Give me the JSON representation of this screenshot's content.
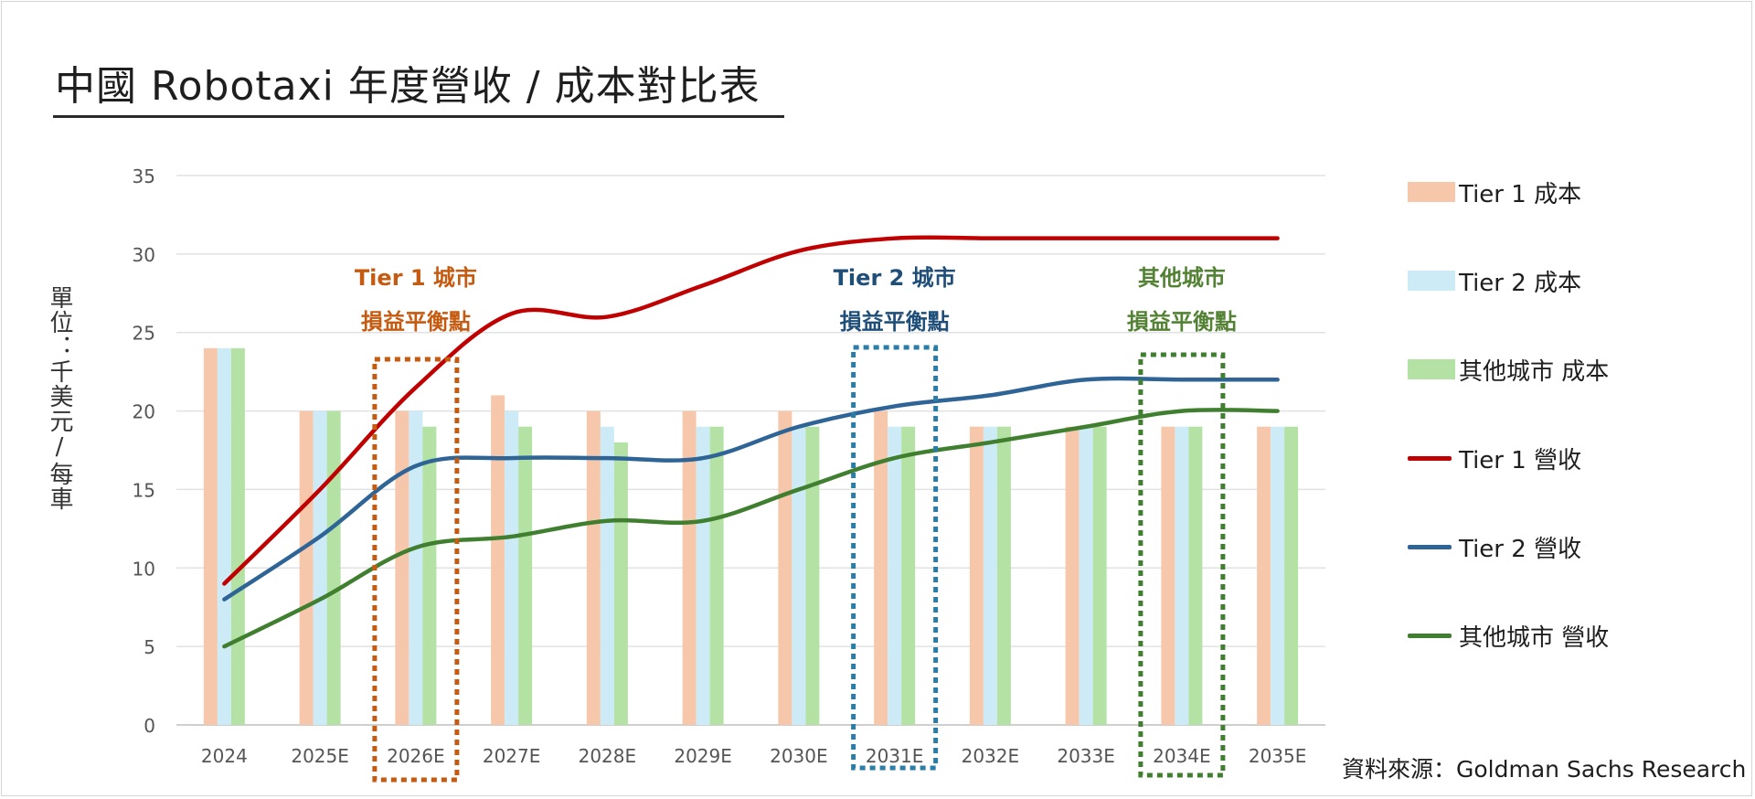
{
  "title": "中國 Robotaxi 年度營收 / 成本對比表",
  "source": "資料來源：Goldman Sachs Research",
  "colors": {
    "tier1_cost": "#f7c7ab",
    "tier2_cost": "#cdebf7",
    "other_cost": "#b4e1a4",
    "tier1_rev": "#c00000",
    "tier2_rev": "#2e6496",
    "other_rev": "#3f7f2f",
    "ann_tier1": "#c55a11",
    "ann_tier2": "#1f4e79",
    "ann_other": "#548235",
    "box_tier1": "#c55a11",
    "box_tier2": "#2a7da6",
    "box_other": "#3f7f2f"
  },
  "chart_data": {
    "type": "bar",
    "ylabel": "單位：千美元/每車",
    "ylim": [
      0,
      35
    ],
    "yticks": [
      0,
      5,
      10,
      15,
      20,
      25,
      30,
      35
    ],
    "grid": true,
    "legend_position": "right",
    "categories": [
      "2024",
      "2025E",
      "2026E",
      "2027E",
      "2028E",
      "2029E",
      "2030E",
      "2031E",
      "2032E",
      "2033E",
      "2034E",
      "2035E"
    ],
    "series": [
      {
        "name": "Tier 1 成本",
        "type": "bar",
        "color_key": "tier1_cost",
        "values": [
          24,
          20,
          20,
          21,
          20,
          20,
          20,
          20,
          19,
          19,
          19,
          19
        ]
      },
      {
        "name": "Tier 2 成本",
        "type": "bar",
        "color_key": "tier2_cost",
        "values": [
          24,
          20,
          20,
          20,
          19,
          19,
          19,
          19,
          19,
          19,
          19,
          19
        ]
      },
      {
        "name": "其他城市 成本",
        "type": "bar",
        "color_key": "other_cost",
        "values": [
          24,
          20,
          19,
          19,
          18,
          19,
          19,
          19,
          19,
          19,
          19,
          19
        ]
      },
      {
        "name": "Tier 1 營收",
        "type": "line",
        "color_key": "tier1_rev",
        "values": [
          9,
          15,
          21.5,
          26.2,
          26,
          28,
          30.2,
          31,
          31,
          31,
          31,
          31
        ]
      },
      {
        "name": "Tier 2 營收",
        "type": "line",
        "color_key": "tier2_rev",
        "values": [
          8,
          12,
          16.5,
          17,
          17,
          17,
          19,
          20.3,
          21,
          22,
          22,
          22
        ]
      },
      {
        "name": "其他城市 營收",
        "type": "line",
        "color_key": "other_rev",
        "values": [
          5,
          8,
          11.3,
          12,
          13,
          13,
          15,
          17,
          18,
          19,
          20,
          20
        ]
      }
    ],
    "annotations": [
      {
        "line1": "Tier 1 城市",
        "line2": "損益平衡點",
        "category": "2026E",
        "color_key": "ann_tier1",
        "box_color_key": "box_tier1"
      },
      {
        "line1": "Tier 2 城市",
        "line2": "損益平衡點",
        "category": "2031E",
        "color_key": "ann_tier2",
        "box_color_key": "box_tier2"
      },
      {
        "line1": "其他城市",
        "line2": "損益平衡點",
        "category": "2034E",
        "color_key": "ann_other",
        "box_color_key": "box_other"
      }
    ]
  }
}
